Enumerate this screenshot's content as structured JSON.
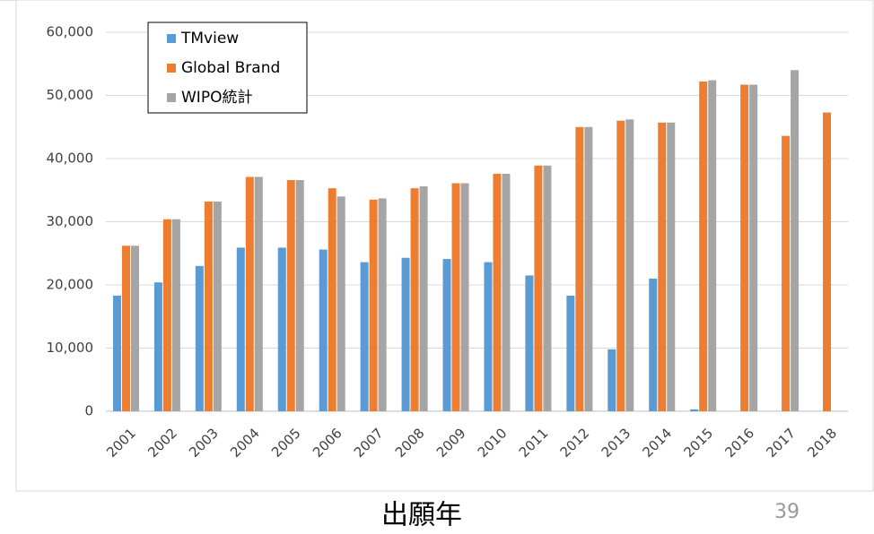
{
  "chart_data": {
    "type": "bar",
    "x_label": "出願年",
    "categories": [
      "2001",
      "2002",
      "2003",
      "2004",
      "2005",
      "2006",
      "2007",
      "2008",
      "2009",
      "2010",
      "2011",
      "2012",
      "2013",
      "2014",
      "2015",
      "2016",
      "2017",
      "2018"
    ],
    "series": [
      {
        "name": "TMview",
        "color": "#5b9bd5",
        "values": [
          18300,
          20400,
          23000,
          25900,
          25900,
          25600,
          23600,
          24300,
          24100,
          23600,
          21500,
          18300,
          9800,
          21000,
          300,
          null,
          null,
          null
        ]
      },
      {
        "name": "Global Brand",
        "color": "#ed7d31",
        "values": [
          26200,
          30400,
          33200,
          37100,
          36600,
          35300,
          33500,
          35300,
          36100,
          37600,
          38900,
          45000,
          46000,
          45700,
          52200,
          51700,
          43600,
          47300
        ]
      },
      {
        "name": "WIPO統計",
        "color": "#a5a5a5",
        "values": [
          26200,
          30400,
          33200,
          37100,
          36600,
          34000,
          33700,
          35600,
          36100,
          37600,
          38900,
          45000,
          46200,
          45700,
          52400,
          51700,
          54000,
          null
        ]
      }
    ],
    "ylim": [
      0,
      60000
    ],
    "yticks": [
      0,
      {
        "value": 10000,
        "label": "10,000"
      },
      {
        "value": 20000,
        "label": "20,000"
      },
      {
        "value": 30000,
        "label": "30,000"
      },
      {
        "value": 40000,
        "label": "40,000"
      },
      {
        "value": 50000,
        "label": "50,000"
      },
      {
        "value": 60000,
        "label": "60,000"
      }
    ],
    "grid": true,
    "legend": "top-left"
  },
  "page_number": "39"
}
